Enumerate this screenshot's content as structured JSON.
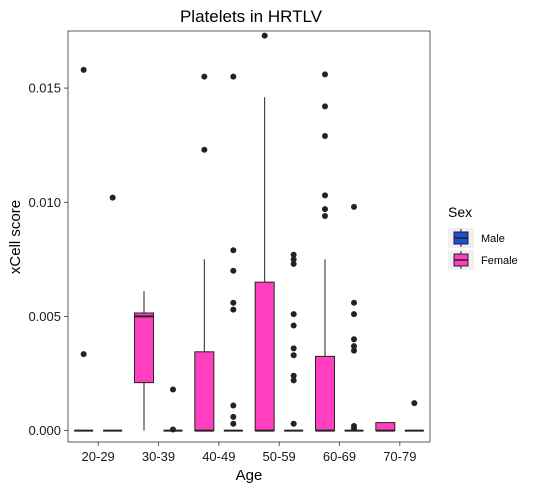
{
  "chart_data": {
    "type": "box",
    "title": "Platelets in HRTLV",
    "xlabel": "Age",
    "ylabel": "xCell score",
    "categories": [
      "20-29",
      "30-39",
      "40-49",
      "50-59",
      "60-69",
      "70-79"
    ],
    "ylim": [
      -0.0005,
      0.0175
    ],
    "yticks": [
      0.0,
      0.005,
      0.01,
      0.015
    ],
    "ytick_labels": [
      "0.000",
      "0.005",
      "0.010",
      "0.015"
    ],
    "grid": false,
    "legend": {
      "title": "Sex",
      "position": "right",
      "entries": [
        {
          "name": "Male",
          "color": "#1e4fd8"
        },
        {
          "name": "Female",
          "color": "#ff3fbf"
        }
      ]
    },
    "series": [
      {
        "name": "Female",
        "color": "#ff3fbf",
        "boxes": [
          {
            "category": "20-29",
            "whisker_low": 0,
            "q1": 0,
            "median": 0,
            "q3": 0,
            "whisker_high": 0,
            "outliers": [
              0.0158,
              0.00335
            ]
          },
          {
            "category": "30-39",
            "whisker_low": 0,
            "q1": 0.0021,
            "median": 0.005,
            "q3": 0.00515,
            "whisker_high": 0.0061,
            "outliers": []
          },
          {
            "category": "40-49",
            "whisker_low": 0,
            "q1": 0,
            "median": 0,
            "q3": 0.00345,
            "whisker_high": 0.0075,
            "outliers": [
              0.0123,
              0.0155
            ]
          },
          {
            "category": "50-59",
            "whisker_low": 0,
            "q1": 0,
            "median": 0,
            "q3": 0.0065,
            "whisker_high": 0.0146,
            "outliers": [
              0.0173
            ]
          },
          {
            "category": "60-69",
            "whisker_low": 0,
            "q1": 0,
            "median": 0,
            "q3": 0.00325,
            "whisker_high": 0.0075,
            "outliers": [
              0.0156,
              0.0142,
              0.0129,
              0.0103,
              0.0097,
              0.0094
            ]
          },
          {
            "category": "70-79",
            "whisker_low": 0,
            "q1": 0,
            "median": 0,
            "q3": 0.00035,
            "whisker_high": 0.00035,
            "outliers": []
          }
        ]
      },
      {
        "name": "Male",
        "color": "#1e4fd8",
        "boxes": [
          {
            "category": "20-29",
            "whisker_low": 0,
            "q1": 0,
            "median": 0,
            "q3": 0,
            "whisker_high": 0,
            "outliers": [
              0.0102
            ]
          },
          {
            "category": "30-39",
            "whisker_low": 0,
            "q1": 0,
            "median": 0,
            "q3": 0,
            "whisker_high": 0,
            "outliers": [
              0.0018,
              5e-05
            ]
          },
          {
            "category": "40-49",
            "whisker_low": 0,
            "q1": 0,
            "median": 0,
            "q3": 0,
            "whisker_high": 0,
            "outliers": [
              0.0155,
              0.0079,
              0.007,
              0.0056,
              0.0053,
              0.0011,
              0.0006,
              0.0003
            ]
          },
          {
            "category": "50-59",
            "whisker_low": 0,
            "q1": 0,
            "median": 0,
            "q3": 0,
            "whisker_high": 0,
            "outliers": [
              0.0077,
              0.0075,
              0.0073,
              0.0051,
              0.0046,
              0.0036,
              0.0033,
              0.0024,
              0.0022,
              0.0003
            ]
          },
          {
            "category": "60-69",
            "whisker_low": 0,
            "q1": 0,
            "median": 0,
            "q3": 0,
            "whisker_high": 0,
            "outliers": [
              0.0098,
              0.0056,
              0.0051,
              0.004,
              0.0037,
              0.0035,
              0.0002,
              0.0001
            ]
          },
          {
            "category": "70-79",
            "whisker_low": 0,
            "q1": 0,
            "median": 0,
            "q3": 0,
            "whisker_high": 0,
            "outliers": [
              0.0012
            ]
          }
        ]
      }
    ]
  }
}
